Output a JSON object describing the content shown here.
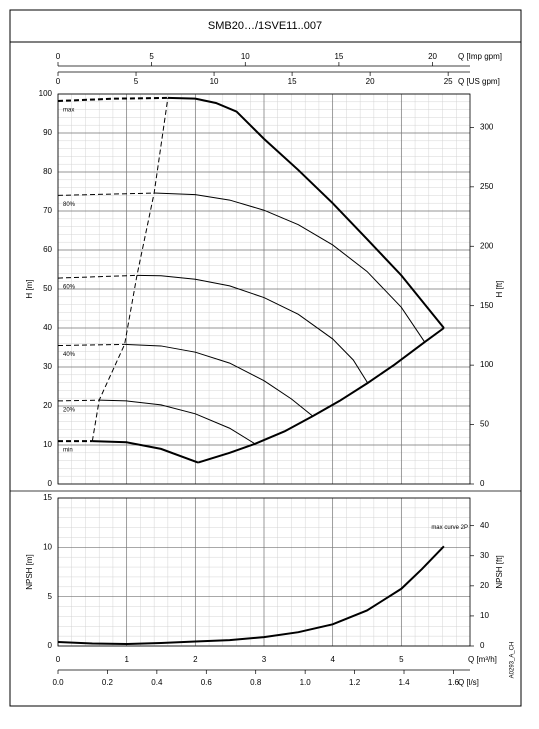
{
  "chart_data": [
    {
      "type": "line",
      "title": "SMB20…/1SVE11..007",
      "xlim": [
        0,
        6
      ],
      "xticks": [
        0,
        1,
        2,
        3,
        4,
        5
      ],
      "x_axes": [
        {
          "label": "Q [Imp gpm]",
          "lim": [
            0,
            22.0
          ],
          "ticks": [
            0,
            5,
            10,
            15,
            20
          ]
        },
        {
          "label": "Q [US gpm]",
          "lim": [
            0,
            26.4
          ],
          "ticks": [
            0,
            5,
            10,
            15,
            20,
            25
          ]
        }
      ],
      "ylabel": "H [m]",
      "ylim": [
        0,
        100
      ],
      "yticks": [
        0,
        10,
        20,
        30,
        40,
        50,
        60,
        70,
        80,
        90,
        100
      ],
      "y2label": "H [ft]",
      "y2lim": [
        0,
        328.1
      ],
      "y2ticks": [
        0,
        50,
        100,
        150,
        200,
        250,
        300
      ],
      "grid": true,
      "minor_grid": 5,
      "series": [
        {
          "name": "max",
          "color": "#000000",
          "width": 2,
          "x": [
            1.6,
            2.0,
            2.3,
            2.6,
            3.0,
            3.5,
            4.0,
            4.5,
            5.0,
            5.62
          ],
          "values": [
            99,
            98.8,
            97.7,
            95.5,
            88.5,
            80.5,
            72,
            62.8,
            53.5,
            40
          ],
          "dashed": {
            "x": [
              0,
              0.8,
              1.6
            ],
            "values": [
              98.2,
              98.8,
              99
            ]
          }
        },
        {
          "name": "80%",
          "color": "#000000",
          "width": 1,
          "x": [
            1.4,
            2.0,
            2.5,
            3.0,
            3.5,
            4.0,
            4.5,
            5.0,
            5.34
          ],
          "values": [
            74.6,
            74.2,
            72.8,
            70.2,
            66.5,
            61.3,
            54.5,
            45.3,
            36.4
          ],
          "dashed": {
            "x": [
              0,
              1.4
            ],
            "values": [
              74,
              74.6
            ]
          }
        },
        {
          "name": "60%",
          "color": "#000000",
          "width": 1,
          "x": [
            1.15,
            1.5,
            2.0,
            2.5,
            3.0,
            3.5,
            4.0,
            4.3,
            4.51
          ],
          "values": [
            53.5,
            53.4,
            52.5,
            50.8,
            47.8,
            43.5,
            37.2,
            31.8,
            25.9
          ],
          "dashed": {
            "x": [
              0,
              1.15
            ],
            "values": [
              52.8,
              53.5
            ]
          }
        },
        {
          "name": "40%",
          "color": "#000000",
          "width": 1,
          "x": [
            0.97,
            1.5,
            2.0,
            2.5,
            3.0,
            3.4,
            3.71
          ],
          "values": [
            35.8,
            35.4,
            33.8,
            31,
            26.5,
            21.8,
            17.4
          ],
          "dashed": {
            "x": [
              0,
              0.97
            ],
            "values": [
              35.5,
              35.8
            ]
          }
        },
        {
          "name": "20%",
          "color": "#000000",
          "width": 1,
          "x": [
            0.6,
            1.0,
            1.5,
            2.0,
            2.5,
            2.87
          ],
          "values": [
            21.5,
            21.3,
            20.3,
            18,
            14.3,
            10.3
          ],
          "dashed": {
            "x": [
              0,
              0.6
            ],
            "values": [
              21.3,
              21.5
            ]
          }
        },
        {
          "name": "min",
          "color": "#000000",
          "width": 2,
          "x": [
            0.5,
            1.0,
            1.5,
            2.04
          ],
          "values": [
            11,
            10.7,
            9,
            5.5
          ],
          "dashed": {
            "x": [
              0,
              0.5
            ],
            "values": [
              11,
              11
            ]
          }
        },
        {
          "color": "#000000",
          "width": 2,
          "x": [
            2.04,
            2.5,
            2.87,
            3.3,
            3.71,
            4.1,
            4.51,
            4.9,
            5.34,
            5.62
          ],
          "values": [
            5.5,
            8,
            10.3,
            13.5,
            17.4,
            21.3,
            25.9,
            30.6,
            36.4,
            40
          ]
        },
        {
          "color": "#000000",
          "width": 1,
          "dashed": {
            "x": [
              0.5,
              0.6,
              0.97,
              1.15,
              1.4,
              1.6
            ],
            "values": [
              11,
              21.5,
              35.8,
              53.5,
              74.6,
              99
            ]
          }
        }
      ]
    },
    {
      "type": "line",
      "xlabel": "Q [m³/h]",
      "xlim": [
        0,
        6
      ],
      "xticks": [
        0,
        1,
        2,
        3,
        4,
        5
      ],
      "x_axes": [
        {
          "label": "Q [l/s]",
          "lim": [
            0,
            1.667
          ],
          "ticks": [
            {
              "value": 0,
              "label": "0.0"
            },
            0.2,
            0.4,
            0.6,
            0.8,
            {
              "value": 1,
              "label": "1.0"
            },
            1.2,
            1.4,
            1.6
          ]
        }
      ],
      "ylabel": "NPSH [m]",
      "ylim": [
        0,
        15
      ],
      "yticks": [
        0,
        5,
        10,
        15
      ],
      "y2label": "NPSH [ft]",
      "y2lim": [
        0,
        49.2
      ],
      "y2ticks": [
        0,
        10,
        20,
        30,
        40
      ],
      "grid": true,
      "minor_grid": 5,
      "annotation": "A0293_A_CH",
      "series": [
        {
          "name": "max curve 2P",
          "color": "#000000",
          "width": 2,
          "x": [
            0,
            0.5,
            1,
            1.5,
            2,
            2.5,
            3,
            3.5,
            4,
            4.5,
            5,
            5.3,
            5.62
          ],
          "values": [
            0.4,
            0.25,
            0.2,
            0.3,
            0.45,
            0.6,
            0.9,
            1.4,
            2.2,
            3.6,
            5.8,
            7.8,
            10.1
          ]
        }
      ]
    }
  ]
}
